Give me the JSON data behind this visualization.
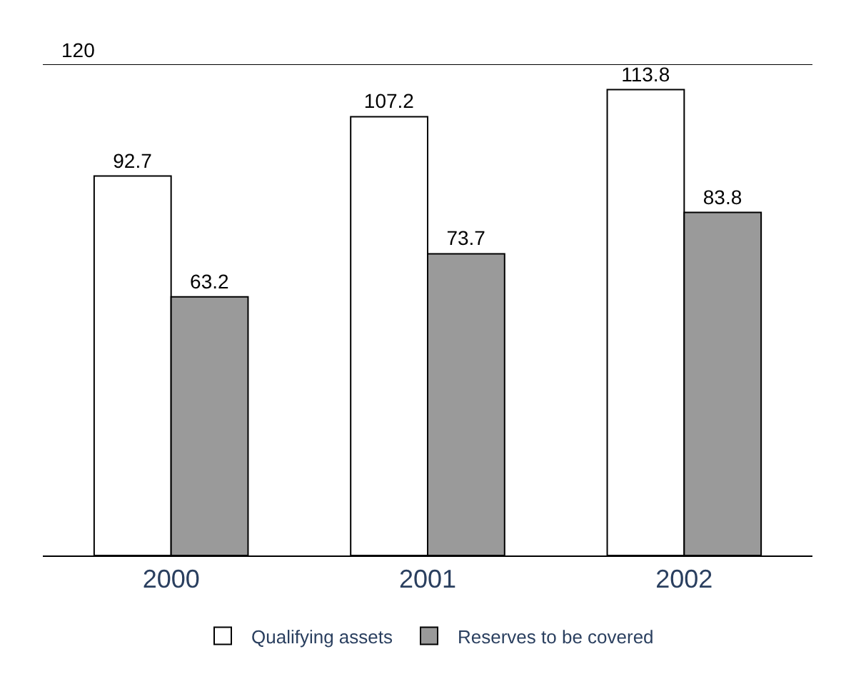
{
  "chart_data": {
    "type": "bar",
    "categories": [
      "2000",
      "2001",
      "2002"
    ],
    "series": [
      {
        "name": "Qualifying assets",
        "color": "#ffffff",
        "values": [
          92.7,
          107.2,
          113.8
        ]
      },
      {
        "name": "Reserves to be covered",
        "color": "#9a9a9a",
        "values": [
          63.2,
          73.7,
          83.8
        ]
      }
    ],
    "ylim": [
      0,
      120
    ],
    "ref_lines": [
      {
        "axis": "y",
        "value": 120,
        "label": "120"
      }
    ],
    "data_labels": true,
    "legend": "bottom"
  }
}
